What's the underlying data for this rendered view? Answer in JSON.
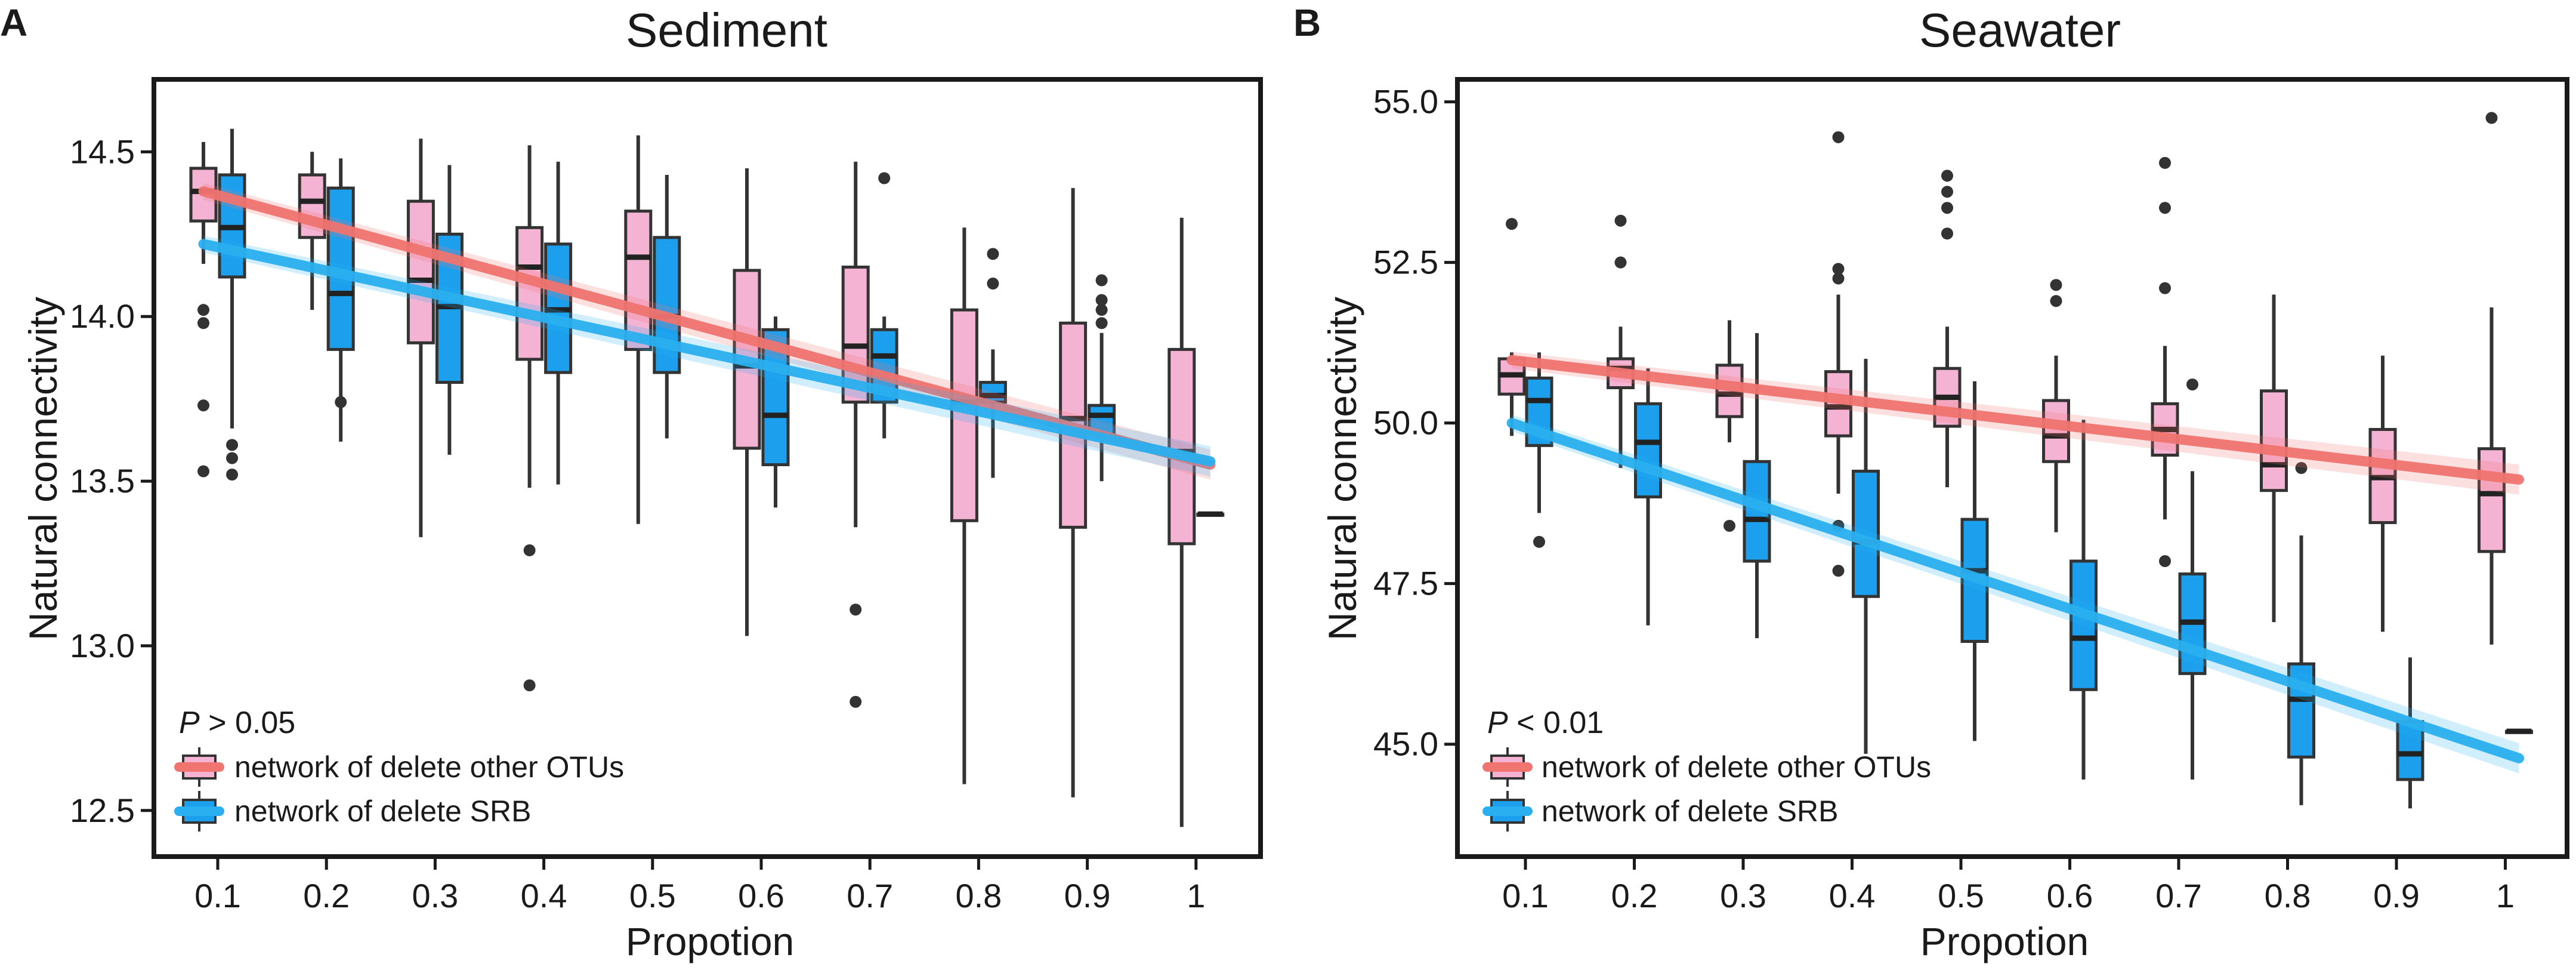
{
  "chart_data": [
    {
      "type": "box",
      "panel": "A",
      "title": "Sediment",
      "xlabel": "Propotion",
      "ylabel": "Natural connectivity",
      "categories": [
        "0.1",
        "0.2",
        "0.3",
        "0.4",
        "0.5",
        "0.6",
        "0.7",
        "0.8",
        "0.9",
        "1"
      ],
      "ylim": [
        12.36,
        14.72
      ],
      "yticks": [
        12.5,
        13.0,
        13.5,
        14.0,
        14.5
      ],
      "ytick_labels": [
        "12.5",
        "13.0",
        "13.5",
        "14.0",
        "14.5"
      ],
      "annotation": {
        "p_symbol": "P",
        "p_rest": " > 0.05"
      },
      "legend": [
        {
          "label": "network of delete other OTUs",
          "color": "#f07470",
          "box": "#f5b3d3"
        },
        {
          "label": "network of delete SRB",
          "color": "#2ab0f0",
          "box": "#1ca0ee"
        }
      ],
      "series": [
        {
          "name": "network of delete other OTUs",
          "box_color": "#f5b3d3",
          "line_color": "#f07470",
          "trend": [
            14.38,
            13.55
          ],
          "boxes": [
            {
              "lw": 14.16,
              "q1": 14.29,
              "med": 14.38,
              "q3": 14.45,
              "uw": 14.53,
              "out": [
                14.02,
                13.98,
                13.73,
                13.53
              ]
            },
            {
              "lw": 14.02,
              "q1": 14.24,
              "med": 14.35,
              "q3": 14.43,
              "uw": 14.5,
              "out": []
            },
            {
              "lw": 13.33,
              "q1": 13.92,
              "med": 14.11,
              "q3": 14.35,
              "uw": 14.54,
              "out": []
            },
            {
              "lw": 13.48,
              "q1": 13.87,
              "med": 14.15,
              "q3": 14.27,
              "uw": 14.52,
              "out": [
                13.29,
                12.88
              ]
            },
            {
              "lw": 13.37,
              "q1": 13.9,
              "med": 14.18,
              "q3": 14.32,
              "uw": 14.55,
              "out": []
            },
            {
              "lw": 13.03,
              "q1": 13.6,
              "med": 13.85,
              "q3": 14.14,
              "uw": 14.45,
              "out": []
            },
            {
              "lw": 13.36,
              "q1": 13.74,
              "med": 13.91,
              "q3": 14.15,
              "uw": 14.47,
              "out": [
                13.11,
                12.83
              ]
            },
            {
              "lw": 12.58,
              "q1": 13.38,
              "med": 13.74,
              "q3": 14.02,
              "uw": 14.27,
              "out": []
            },
            {
              "lw": 12.54,
              "q1": 13.36,
              "med": 13.69,
              "q3": 13.98,
              "uw": 14.39,
              "out": []
            },
            {
              "lw": 12.45,
              "q1": 13.31,
              "med": 13.59,
              "q3": 13.9,
              "uw": 14.3,
              "out": []
            }
          ]
        },
        {
          "name": "network of delete SRB",
          "box_color": "#1ca0ee",
          "line_color": "#2ab0f0",
          "trend": [
            14.22,
            13.56
          ],
          "boxes": [
            {
              "lw": 13.66,
              "q1": 14.12,
              "med": 14.27,
              "q3": 14.43,
              "uw": 14.57,
              "out": [
                13.61,
                13.57,
                13.52
              ]
            },
            {
              "lw": 13.62,
              "q1": 13.9,
              "med": 14.07,
              "q3": 14.39,
              "uw": 14.48,
              "out": [
                13.74
              ]
            },
            {
              "lw": 13.58,
              "q1": 13.8,
              "med": 14.03,
              "q3": 14.25,
              "uw": 14.46,
              "out": []
            },
            {
              "lw": 13.49,
              "q1": 13.83,
              "med": 14.02,
              "q3": 14.22,
              "uw": 14.47,
              "out": []
            },
            {
              "lw": 13.63,
              "q1": 13.83,
              "med": 14.0,
              "q3": 14.24,
              "uw": 14.43,
              "out": []
            },
            {
              "lw": 13.42,
              "q1": 13.55,
              "med": 13.7,
              "q3": 13.96,
              "uw": 14.0,
              "out": []
            },
            {
              "lw": 13.63,
              "q1": 13.74,
              "med": 13.88,
              "q3": 13.96,
              "uw": 14.0,
              "out": [
                14.42
              ]
            },
            {
              "lw": 13.51,
              "q1": 13.74,
              "med": 13.76,
              "q3": 13.8,
              "uw": 13.9,
              "out": [
                14.19,
                14.1
              ]
            },
            {
              "lw": 13.5,
              "q1": 13.64,
              "med": 13.7,
              "q3": 13.73,
              "uw": 13.95,
              "out": [
                14.11,
                14.05,
                14.02,
                13.98
              ]
            },
            {
              "lw": 13.4,
              "q1": 13.4,
              "med": 13.4,
              "q3": 13.4,
              "uw": 13.4,
              "out": []
            }
          ]
        }
      ]
    },
    {
      "type": "box",
      "panel": "B",
      "title": "Seawater",
      "xlabel": "Propotion",
      "ylabel": "Natural connectivity",
      "categories": [
        "0.1",
        "0.2",
        "0.3",
        "0.4",
        "0.5",
        "0.6",
        "0.7",
        "0.8",
        "0.9",
        "1"
      ],
      "ylim": [
        43.25,
        55.35
      ],
      "yticks": [
        45.0,
        47.5,
        50.0,
        52.5,
        55.0
      ],
      "ytick_labels": [
        "45.0",
        "47.5",
        "50.0",
        "52.5",
        "55.0"
      ],
      "annotation": {
        "p_symbol": "P",
        "p_rest": " < 0.01"
      },
      "legend": [
        {
          "label": "network of delete other OTUs",
          "color": "#f07470",
          "box": "#f5b3d3"
        },
        {
          "label": "network of delete SRB",
          "color": "#2ab0f0",
          "box": "#1ca0ee"
        }
      ],
      "series": [
        {
          "name": "network of delete other OTUs",
          "box_color": "#f5b3d3",
          "line_color": "#f07470",
          "trend": [
            50.98,
            49.12
          ],
          "boxes": [
            {
              "lw": 49.8,
              "q1": 50.45,
              "med": 50.75,
              "q3": 51.0,
              "uw": 51.1,
              "out": [
                53.1
              ]
            },
            {
              "lw": 49.3,
              "q1": 50.55,
              "med": 50.85,
              "q3": 51.0,
              "uw": 51.5,
              "out": [
                53.15,
                52.5
              ]
            },
            {
              "lw": 49.7,
              "q1": 50.1,
              "med": 50.45,
              "q3": 50.9,
              "uw": 51.6,
              "out": [
                48.4
              ]
            },
            {
              "lw": 48.9,
              "q1": 49.8,
              "med": 50.25,
              "q3": 50.8,
              "uw": 52.0,
              "out": [
                54.45,
                52.4,
                52.25,
                48.4,
                47.7
              ]
            },
            {
              "lw": 49.0,
              "q1": 49.95,
              "med": 50.4,
              "q3": 50.85,
              "uw": 51.5,
              "out": [
                53.85,
                53.6,
                53.35,
                52.95
              ]
            },
            {
              "lw": 48.3,
              "q1": 49.4,
              "med": 49.8,
              "q3": 50.35,
              "uw": 51.05,
              "out": [
                52.15,
                51.9
              ]
            },
            {
              "lw": 48.5,
              "q1": 49.5,
              "med": 49.9,
              "q3": 50.3,
              "uw": 51.2,
              "out": [
                54.05,
                53.35,
                52.1,
                47.85
              ]
            },
            {
              "lw": 46.9,
              "q1": 48.95,
              "med": 49.35,
              "q3": 50.5,
              "uw": 52.0,
              "out": []
            },
            {
              "lw": 46.75,
              "q1": 48.45,
              "med": 49.15,
              "q3": 49.9,
              "uw": 51.05,
              "out": []
            },
            {
              "lw": 46.55,
              "q1": 48.0,
              "med": 48.9,
              "q3": 49.6,
              "uw": 51.8,
              "out": [
                54.75
              ]
            }
          ]
        },
        {
          "name": "network of delete SRB",
          "box_color": "#1ca0ee",
          "line_color": "#2ab0f0",
          "trend": [
            50.0,
            44.78
          ],
          "boxes": [
            {
              "lw": 48.6,
              "q1": 49.65,
              "med": 50.35,
              "q3": 50.7,
              "uw": 51.1,
              "out": [
                48.15
              ]
            },
            {
              "lw": 46.85,
              "q1": 48.85,
              "med": 49.7,
              "q3": 50.3,
              "uw": 50.85,
              "out": []
            },
            {
              "lw": 46.65,
              "q1": 47.85,
              "med": 48.5,
              "q3": 49.4,
              "uw": 51.4,
              "out": []
            },
            {
              "lw": 44.85,
              "q1": 47.3,
              "med": 48.15,
              "q3": 49.25,
              "uw": 51.0,
              "out": []
            },
            {
              "lw": 45.05,
              "q1": 46.6,
              "med": 47.7,
              "q3": 48.5,
              "uw": 50.65,
              "out": []
            },
            {
              "lw": 44.45,
              "q1": 45.85,
              "med": 46.65,
              "q3": 47.85,
              "uw": 50.05,
              "out": []
            },
            {
              "lw": 44.45,
              "q1": 46.1,
              "med": 46.9,
              "q3": 47.65,
              "uw": 49.25,
              "out": [
                50.6
              ]
            },
            {
              "lw": 44.05,
              "q1": 44.8,
              "med": 45.7,
              "q3": 46.25,
              "uw": 48.25,
              "out": [
                49.3
              ]
            },
            {
              "lw": 44.0,
              "q1": 44.45,
              "med": 44.85,
              "q3": 45.35,
              "uw": 46.35,
              "out": []
            },
            {
              "lw": 45.2,
              "q1": 45.2,
              "med": 45.2,
              "q3": 45.2,
              "uw": 45.2,
              "out": []
            }
          ]
        }
      ]
    }
  ]
}
